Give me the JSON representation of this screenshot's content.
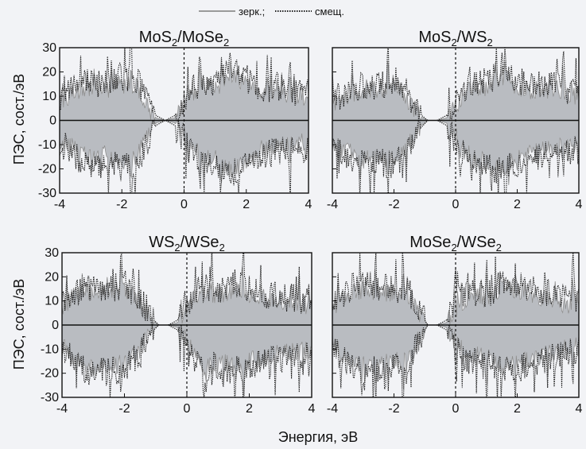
{
  "legend": {
    "entries": [
      {
        "label": "зерк.;",
        "style": "solid",
        "color": "#9a9a9a"
      },
      {
        "label": "смещ.",
        "style": "dotted",
        "color": "#222222"
      }
    ],
    "placement": "top-center"
  },
  "axes": {
    "xlabel": "Энергия, эВ",
    "ylabel": "ПЭС, сост./эВ",
    "xlim": [
      -4,
      4
    ],
    "ylim": [
      -30,
      30
    ],
    "xticks": [
      -4,
      -2,
      0,
      2,
      4
    ],
    "yticks": [
      -30,
      -20,
      -10,
      0,
      10,
      20,
      30
    ]
  },
  "colors": {
    "mirror_fill": "#b9bcc1",
    "mirror_line": "#8f8f8f",
    "shifted_line": "#1a1a1a",
    "background": "#f2f3f6"
  },
  "chart_data": [
    {
      "type": "area",
      "title": "MoS2/MoSe2",
      "title_parts": {
        "a": "MoS",
        "a_sub": "2",
        "b": "/MoSe",
        "b_sub": "2"
      },
      "x": [
        -4,
        -3.5,
        -3,
        -2.5,
        -2,
        -1.5,
        -1.2,
        -0.9,
        -0.6,
        -0.3,
        0,
        0.3,
        0.6,
        1,
        1.5,
        2,
        2.5,
        3,
        3.5,
        4
      ],
      "series": [
        {
          "name": "зерк.;",
          "values_upper": [
            8,
            12,
            14,
            13,
            15,
            14,
            6,
            1,
            0,
            1,
            6,
            12,
            14,
            13,
            20,
            15,
            11,
            12,
            10,
            9
          ],
          "values_lower": [
            -8,
            -12,
            -16,
            -14,
            -17,
            -15,
            -7,
            -1,
            0,
            -1,
            -6,
            -12,
            -15,
            -16,
            -20,
            -17,
            -12,
            -11,
            -10,
            -9
          ]
        },
        {
          "name": "смещ.",
          "values_upper": [
            9,
            13,
            16,
            15,
            18,
            17,
            8,
            2,
            0,
            2,
            8,
            14,
            16,
            15,
            22,
            17,
            13,
            14,
            12,
            11
          ],
          "values_lower": [
            -9,
            -14,
            -18,
            -16,
            -20,
            -18,
            -9,
            -2,
            0,
            -2,
            -8,
            -14,
            -17,
            -18,
            -22,
            -19,
            -14,
            -13,
            -12,
            -11
          ]
        }
      ],
      "peaks": [
        -1.7,
        0.5,
        1.2,
        3.4
      ],
      "ylim": [
        -30,
        30
      ]
    },
    {
      "type": "area",
      "title": "MoS2/WS2",
      "title_parts": {
        "a": "MoS",
        "a_sub": "2",
        "b": "/WS",
        "b_sub": "2"
      },
      "x": [
        -4,
        -3.5,
        -3,
        -2.5,
        -2,
        -1.5,
        -1.2,
        -0.9,
        -0.6,
        -0.3,
        0,
        0.3,
        0.6,
        1,
        1.5,
        2,
        2.5,
        3,
        3.5,
        4
      ],
      "series": [
        {
          "name": "зерк.;",
          "values_upper": [
            7,
            11,
            13,
            13,
            15,
            8,
            2,
            0,
            0,
            1,
            5,
            11,
            14,
            14,
            18,
            14,
            12,
            13,
            11,
            10
          ],
          "values_lower": [
            -8,
            -13,
            -16,
            -15,
            -17,
            -9,
            -3,
            0,
            0,
            -1,
            -6,
            -13,
            -16,
            -17,
            -19,
            -16,
            -13,
            -12,
            -11,
            -10
          ]
        },
        {
          "name": "смещ.",
          "values_upper": [
            8,
            12,
            15,
            14,
            17,
            10,
            3,
            0,
            0,
            2,
            7,
            13,
            16,
            16,
            20,
            16,
            14,
            15,
            13,
            12
          ],
          "values_lower": [
            -9,
            -15,
            -18,
            -17,
            -19,
            -11,
            -4,
            0,
            0,
            -2,
            -8,
            -15,
            -18,
            -19,
            -21,
            -18,
            -15,
            -14,
            -13,
            -12
          ]
        }
      ],
      "peaks": [
        -2.2,
        1.6,
        3.5
      ],
      "ylim": [
        -30,
        30
      ]
    },
    {
      "type": "area",
      "title": "WS2/WSe2",
      "title_parts": {
        "a": "WS",
        "a_sub": "2",
        "b": "/WSe",
        "b_sub": "2"
      },
      "x": [
        -4,
        -3.5,
        -3,
        -2.5,
        -2,
        -1.5,
        -1.2,
        -0.9,
        -0.6,
        -0.3,
        0,
        0.3,
        0.6,
        1,
        1.5,
        2,
        2.5,
        3,
        3.5,
        4
      ],
      "series": [
        {
          "name": "зерк.;",
          "values_upper": [
            8,
            13,
            14,
            13,
            15,
            9,
            3,
            0,
            0,
            1,
            6,
            12,
            13,
            12,
            14,
            13,
            11,
            10,
            9,
            8
          ],
          "values_lower": [
            -9,
            -15,
            -18,
            -17,
            -16,
            -10,
            -3,
            0,
            0,
            -1,
            -7,
            -14,
            -16,
            -15,
            -17,
            -15,
            -13,
            -12,
            -11,
            -10
          ]
        },
        {
          "name": "смещ.",
          "values_upper": [
            9,
            14,
            16,
            15,
            17,
            11,
            4,
            0,
            0,
            2,
            8,
            14,
            15,
            14,
            16,
            15,
            13,
            12,
            11,
            10
          ],
          "values_lower": [
            -10,
            -17,
            -20,
            -19,
            -18,
            -12,
            -4,
            0,
            0,
            -2,
            -9,
            -16,
            -18,
            -17,
            -19,
            -17,
            -15,
            -14,
            -13,
            -12
          ]
        }
      ],
      "peaks": [
        -2.1,
        0.8,
        1.8,
        3.6
      ],
      "ylim": [
        -30,
        30
      ]
    },
    {
      "type": "area",
      "title": "MoSe2/WSe2",
      "title_parts": {
        "a": "MoSe",
        "a_sub": "2",
        "b": "/WSe",
        "b_sub": "2"
      },
      "x": [
        -4,
        -3.5,
        -3,
        -2.5,
        -2,
        -1.5,
        -1.2,
        -0.9,
        -0.6,
        -0.3,
        0,
        0.3,
        0.6,
        1,
        1.5,
        2,
        2.5,
        3,
        3.5,
        4
      ],
      "series": [
        {
          "name": "зерк.;",
          "values_upper": [
            7,
            13,
            15,
            14,
            13,
            12,
            5,
            0,
            0,
            1,
            6,
            11,
            12,
            10,
            16,
            15,
            13,
            11,
            9,
            8
          ],
          "values_lower": [
            -8,
            -14,
            -17,
            -16,
            -15,
            -13,
            -6,
            0,
            0,
            -1,
            -7,
            -12,
            -13,
            -11,
            -17,
            -16,
            -14,
            -12,
            -10,
            -9
          ]
        },
        {
          "name": "смещ.",
          "values_upper": [
            8,
            15,
            17,
            16,
            15,
            14,
            6,
            0,
            0,
            2,
            8,
            13,
            14,
            12,
            18,
            17,
            15,
            13,
            11,
            10
          ],
          "values_lower": [
            -9,
            -16,
            -19,
            -18,
            -17,
            -15,
            -7,
            0,
            0,
            -2,
            -9,
            -14,
            -15,
            -13,
            -19,
            -18,
            -16,
            -14,
            -12,
            -11
          ]
        }
      ],
      "peaks": [
        -2.6,
        -1.7,
        0.0,
        1.0,
        3.8
      ],
      "ylim": [
        -30,
        30
      ]
    }
  ]
}
